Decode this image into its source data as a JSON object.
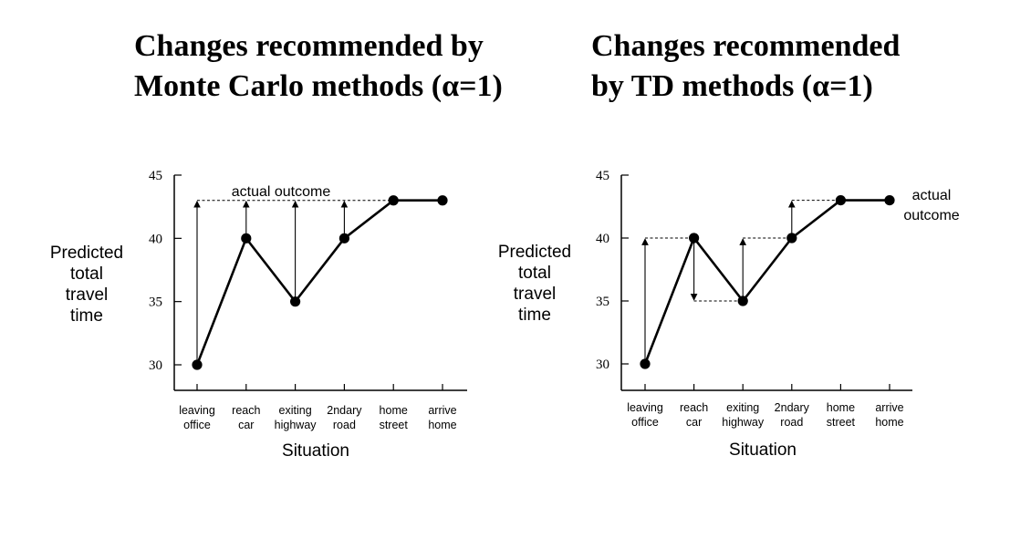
{
  "chart_data": [
    {
      "type": "line",
      "title_lines": [
        "Changes recommended by",
        "Monte Carlo methods (α=1)"
      ],
      "ylabel_lines": [
        "Predicted",
        "total",
        "travel",
        "time"
      ],
      "xlabel": "Situation",
      "categories": [
        [
          "leaving",
          "office"
        ],
        [
          "reach",
          "car"
        ],
        [
          "exiting",
          "highway"
        ],
        [
          "2ndary",
          "road"
        ],
        [
          "home",
          "street"
        ],
        [
          "arrive",
          "home"
        ]
      ],
      "yticks": [
        30,
        35,
        40,
        45
      ],
      "ylim": [
        28.2,
        45
      ],
      "values": [
        30,
        40,
        35,
        40,
        43,
        43
      ],
      "outcome": 43,
      "annotation_lines": [
        "actual outcome"
      ],
      "method": "monte_carlo"
    },
    {
      "type": "line",
      "title_lines": [
        "Changes recommended",
        "by TD methods (α=1)"
      ],
      "ylabel_lines": [
        "Predicted",
        "total",
        "travel",
        "time"
      ],
      "xlabel": "Situation",
      "categories": [
        [
          "leaving",
          "office"
        ],
        [
          "reach",
          "car"
        ],
        [
          "exiting",
          "highway"
        ],
        [
          "2ndary",
          "road"
        ],
        [
          "home",
          "street"
        ],
        [
          "arrive",
          "home"
        ]
      ],
      "yticks": [
        30,
        35,
        40,
        45
      ],
      "ylim": [
        28.2,
        45
      ],
      "values": [
        30,
        40,
        35,
        40,
        43,
        43
      ],
      "outcome": 43,
      "annotation_lines": [
        "actual",
        "outcome"
      ],
      "method": "td"
    }
  ]
}
